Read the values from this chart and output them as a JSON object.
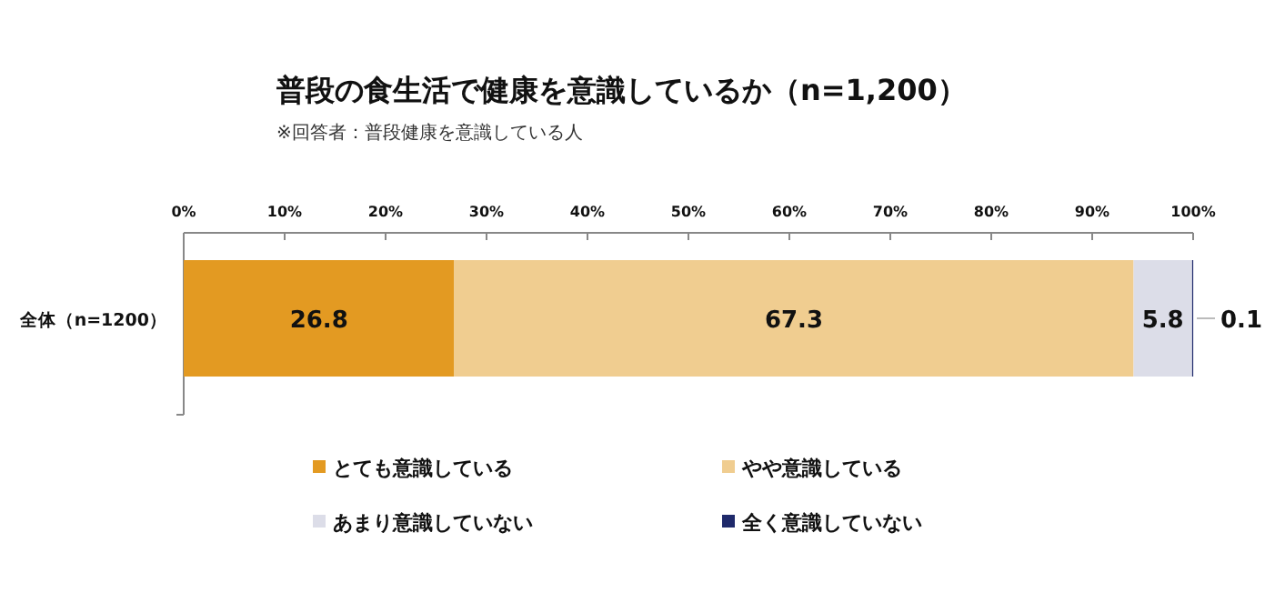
{
  "chart_data": {
    "type": "bar",
    "orientation": "horizontal",
    "stacked": true,
    "title": "普段の食生活で健康を意識しているか（n=1,200）",
    "subtitle": "※回答者：普段健康を意識している人",
    "categories": [
      "全体（n=1200）"
    ],
    "series": [
      {
        "name": "とても意識している",
        "color": "#e39a22",
        "values": [
          26.8
        ]
      },
      {
        "name": "やや意識している",
        "color": "#f0cd90",
        "values": [
          67.3
        ]
      },
      {
        "name": "あまり意識していない",
        "color": "#dcdde8",
        "values": [
          5.8
        ]
      },
      {
        "name": "全く意識していない",
        "color": "#1f2a6b",
        "values": [
          0.1
        ]
      }
    ],
    "xlim": [
      0,
      100
    ],
    "xticks": [
      {
        "value": 0,
        "label": "0%"
      },
      {
        "value": 10,
        "label": "10%"
      },
      {
        "value": 20,
        "label": "20%"
      },
      {
        "value": 30,
        "label": "30%"
      },
      {
        "value": 40,
        "label": "40%"
      },
      {
        "value": 50,
        "label": "50%"
      },
      {
        "value": 60,
        "label": "60%"
      },
      {
        "value": 70,
        "label": "70%"
      },
      {
        "value": 80,
        "label": "80%"
      },
      {
        "value": 90,
        "label": "90%"
      },
      {
        "value": 100,
        "label": "100%"
      }
    ],
    "data_labels": true,
    "legend": "bottom"
  }
}
